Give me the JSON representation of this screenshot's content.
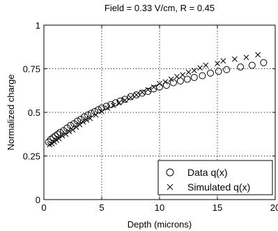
{
  "chart_data": {
    "type": "scatter",
    "title": "Field = 0.33 V/cm, R = 0.45",
    "xlabel": "Depth (microns)",
    "ylabel": "Normalized charge",
    "xlim": [
      0,
      20
    ],
    "ylim": [
      0,
      1
    ],
    "xticks": [
      0,
      5,
      10,
      15,
      20
    ],
    "yticks": [
      0,
      0.25,
      0.5,
      0.75,
      1
    ],
    "ytick_labels": [
      "0",
      "0.25",
      "0.5",
      "0.75",
      "1"
    ],
    "grid": true,
    "legend_position": "bottom-right",
    "series": [
      {
        "name": "Data q(x)",
        "marker": "circle",
        "x": [
          0.4,
          0.6,
          0.8,
          1.0,
          1.2,
          1.4,
          1.7,
          2.0,
          2.3,
          2.6,
          2.9,
          3.2,
          3.5,
          3.8,
          4.1,
          4.4,
          4.7,
          5.0,
          5.4,
          5.8,
          6.2,
          6.6,
          7.0,
          7.5,
          8.0,
          8.5,
          9.0,
          9.5,
          10.0,
          10.6,
          11.2,
          11.8,
          12.4,
          13.0,
          13.7,
          14.4,
          15.1,
          15.8,
          17.0,
          18.0,
          19.0
        ],
        "y": [
          0.33,
          0.345,
          0.355,
          0.365,
          0.375,
          0.385,
          0.395,
          0.41,
          0.425,
          0.435,
          0.45,
          0.46,
          0.475,
          0.485,
          0.495,
          0.505,
          0.515,
          0.525,
          0.535,
          0.545,
          0.555,
          0.565,
          0.575,
          0.59,
          0.6,
          0.61,
          0.62,
          0.635,
          0.645,
          0.655,
          0.67,
          0.68,
          0.69,
          0.7,
          0.71,
          0.725,
          0.735,
          0.745,
          0.76,
          0.77,
          0.785
        ]
      },
      {
        "name": "Simulated q(x)",
        "marker": "x",
        "x": [
          0.5,
          0.7,
          0.9,
          1.1,
          1.3,
          1.6,
          1.9,
          2.2,
          2.5,
          2.8,
          3.1,
          3.4,
          3.7,
          4.0,
          4.5,
          5.0,
          5.5,
          6.0,
          6.5,
          7.0,
          7.5,
          8.0,
          8.5,
          9.0,
          9.5,
          10.0,
          10.5,
          11.0,
          11.5,
          12.0,
          12.5,
          13.0,
          13.5,
          14.0,
          15.0,
          15.5,
          16.5,
          17.5,
          18.5
        ],
        "y": [
          0.315,
          0.32,
          0.33,
          0.34,
          0.35,
          0.365,
          0.375,
          0.39,
          0.4,
          0.415,
          0.43,
          0.445,
          0.455,
          0.465,
          0.485,
          0.505,
          0.525,
          0.54,
          0.555,
          0.57,
          0.585,
          0.6,
          0.615,
          0.63,
          0.645,
          0.665,
          0.675,
          0.69,
          0.705,
          0.715,
          0.73,
          0.74,
          0.755,
          0.77,
          0.78,
          0.795,
          0.805,
          0.815,
          0.83
        ]
      }
    ]
  }
}
